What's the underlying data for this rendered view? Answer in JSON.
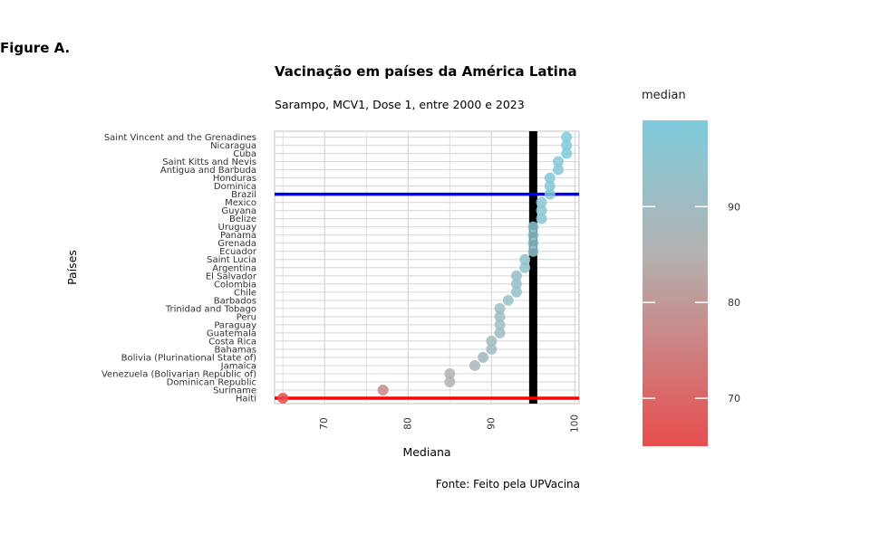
{
  "figure_label": "Figure A.",
  "caption": "Fonte: Feito pela UPVacina",
  "chart_data": {
    "type": "scatter",
    "title": "Vacinação em países da América Latina",
    "subtitle": "Sarampo, MCV1, Dose 1, entre 2000 e 2023",
    "xlabel": "Mediana",
    "ylabel": "Países",
    "xlim": [
      64,
      100.5
    ],
    "xticks": [
      70,
      80,
      90,
      100
    ],
    "grid": true,
    "legend": {
      "title": "median",
      "placement": "right",
      "ticks": [
        70,
        80,
        90
      ],
      "range": [
        65,
        99
      ],
      "low_color": "#e84e4e",
      "mid_color": "#b3b3b3",
      "high_color": "#7ecbdd"
    },
    "reference_lines": [
      {
        "orientation": "vertical",
        "x": 95,
        "color": "#000000"
      },
      {
        "orientation": "horizontal",
        "category": "Brazil",
        "color": "#0000ff"
      },
      {
        "orientation": "horizontal",
        "category": "Haiti",
        "color": "#ff0000"
      }
    ],
    "categories": [
      "Saint Vincent and the Grenadines",
      "Nicaragua",
      "Cuba",
      "Saint Kitts and Nevis",
      "Antigua and Barbuda",
      "Honduras",
      "Dominica",
      "Brazil",
      "Mexico",
      "Guyana",
      "Belize",
      "Uruguay",
      "Panama",
      "Grenada",
      "Ecuador",
      "Saint Lucia",
      "Argentina",
      "El Salvador",
      "Colombia",
      "Chile",
      "Barbados",
      "Trinidad and Tobago",
      "Peru",
      "Paraguay",
      "Guatemala",
      "Costa Rica",
      "Bahamas",
      "Bolivia (Plurinational State of)",
      "Jamaica",
      "Venezuela (Bolivarian Republic of)",
      "Dominican Republic",
      "Suriname",
      "Haiti"
    ],
    "values": [
      99,
      99,
      99,
      98,
      98,
      97,
      97,
      97,
      96,
      96,
      96,
      95,
      95,
      95,
      95,
      94,
      94,
      93,
      93,
      93,
      92,
      91,
      91,
      91,
      91,
      90,
      90,
      89,
      88,
      85,
      85,
      77,
      65
    ]
  }
}
